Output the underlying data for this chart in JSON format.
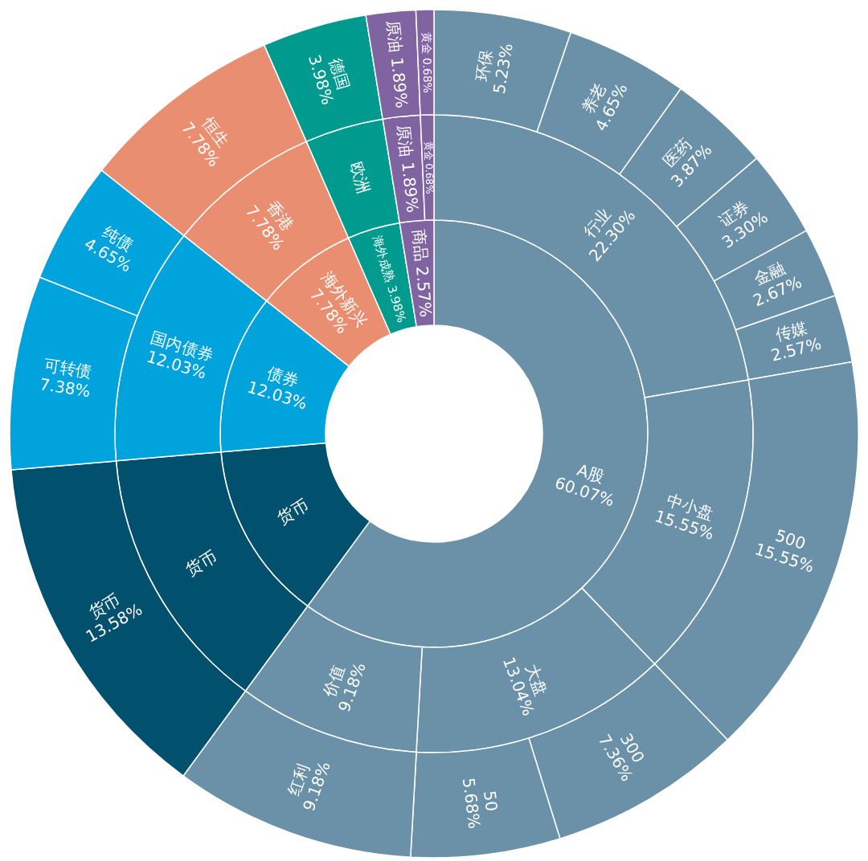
{
  "chart_data": [
    {
      "type": "donut",
      "categories": [
        "A股",
        "货币",
        "债券",
        "海外新兴",
        "海外成熟",
        "商品"
      ],
      "values": [
        60.07,
        13.58,
        12.03,
        7.78,
        3.98,
        2.57
      ],
      "colors": [
        "#6a91a8",
        "#00506e",
        "#00a3dc",
        "#ea8e71",
        "#009a8e",
        "#8064a2"
      ],
      "value_labels": [
        "60.07%",
        null,
        "12.03%",
        "7.78%",
        "3.98%",
        "2.57%"
      ]
    },
    {
      "type": "donut",
      "categories": [
        "行业",
        "中小盘",
        "大盘",
        "价值",
        "货币",
        "国内债券",
        "香港",
        "欧洲",
        "原油",
        "黄金"
      ],
      "values": [
        22.3,
        15.55,
        13.04,
        9.18,
        13.58,
        12.03,
        7.78,
        3.98,
        1.89,
        0.68
      ],
      "colors": [
        "#6a91a8",
        "#6a91a8",
        "#6a91a8",
        "#6a91a8",
        "#00506e",
        "#00a3dc",
        "#ea8e71",
        "#009a8e",
        "#8064a2",
        "#8064a2"
      ],
      "value_labels": [
        "22.30%",
        "15.55%",
        "13.04%",
        "9.18%",
        null,
        "12.03%",
        "7.78%",
        null,
        "1.89%",
        "0.68%"
      ]
    },
    {
      "type": "donut",
      "categories": [
        "环保",
        "养老",
        "医药",
        "证券",
        "金融",
        "传媒",
        "500",
        "300",
        "50",
        "红利",
        "货币",
        "可转债",
        "纯债",
        "恒生",
        "德国",
        "原油",
        "黄金"
      ],
      "values": [
        5.23,
        4.65,
        3.87,
        3.3,
        2.67,
        2.57,
        15.55,
        7.36,
        5.68,
        9.18,
        13.58,
        7.38,
        4.65,
        7.78,
        3.98,
        1.89,
        0.68
      ],
      "colors": [
        "#6a91a8",
        "#6a91a8",
        "#6a91a8",
        "#6a91a8",
        "#6a91a8",
        "#6a91a8",
        "#6a91a8",
        "#6a91a8",
        "#6a91a8",
        "#6a91a8",
        "#00506e",
        "#00a3dc",
        "#00a3dc",
        "#ea8e71",
        "#009a8e",
        "#8064a2",
        "#8064a2"
      ],
      "value_labels": [
        "5.23%",
        "4.65%",
        "3.87%",
        "3.30%",
        "2.67%",
        "2.57%",
        "15.55%",
        "7.36%",
        "5.68%",
        "9.18%",
        "13.58%",
        "7.38%",
        "4.65%",
        "7.78%",
        "3.98%",
        "1.89%",
        "0.68%"
      ]
    }
  ]
}
